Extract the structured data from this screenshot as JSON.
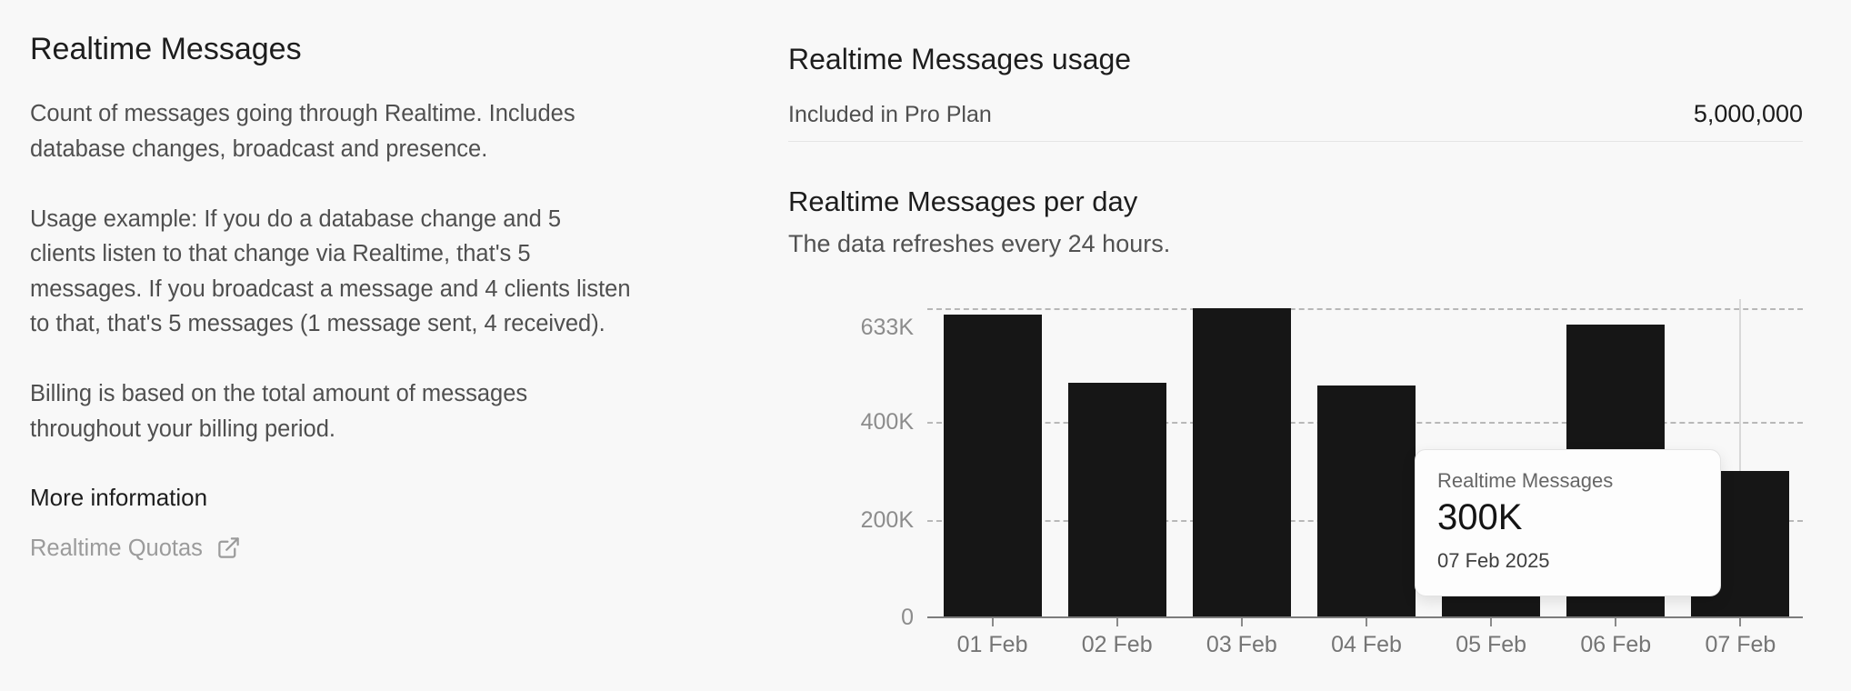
{
  "left": {
    "title": "Realtime Messages",
    "paragraphs": [
      "Count of messages going through Realtime. Includes\ndatabase changes, broadcast and presence.",
      "Usage example: If you do a database change and 5\nclients listen to that change via Realtime, that's 5\nmessages. If you broadcast a message and 4 clients listen\nto that, that's 5 messages (1 message sent, 4 received).",
      "Billing is based on the total amount of messages\nthroughout your billing period."
    ],
    "more_information_label": "More information",
    "quotas_link_label": "Realtime Quotas"
  },
  "right": {
    "usage_title": "Realtime Messages usage",
    "quota_label": "Included in Pro Plan",
    "quota_value": "5,000,000",
    "per_day_title": "Realtime Messages per day",
    "refresh_note": "The data refreshes every 24 hours."
  },
  "chart_data": {
    "type": "bar",
    "title": "Realtime Messages per day",
    "series_name": "Realtime Messages",
    "categories": [
      "01 Feb",
      "02 Feb",
      "03 Feb",
      "04 Feb",
      "05 Feb",
      "06 Feb",
      "07 Feb"
    ],
    "values": [
      620000,
      480000,
      633000,
      475000,
      150000,
      600000,
      300000
    ],
    "ylim": [
      0,
      633000
    ],
    "yticks": [
      {
        "value": 0,
        "label": "0"
      },
      {
        "value": 200000,
        "label": "200K"
      },
      {
        "value": 400000,
        "label": "400K"
      },
      {
        "value": 633000,
        "label": "633K"
      }
    ],
    "grid": "horizontal-dashed",
    "legend": "none",
    "bar_color": "#161616",
    "hovered_category": "07 Feb",
    "tooltip": {
      "title": "Realtime Messages",
      "value": "300K",
      "date": "07 Feb 2025"
    }
  }
}
